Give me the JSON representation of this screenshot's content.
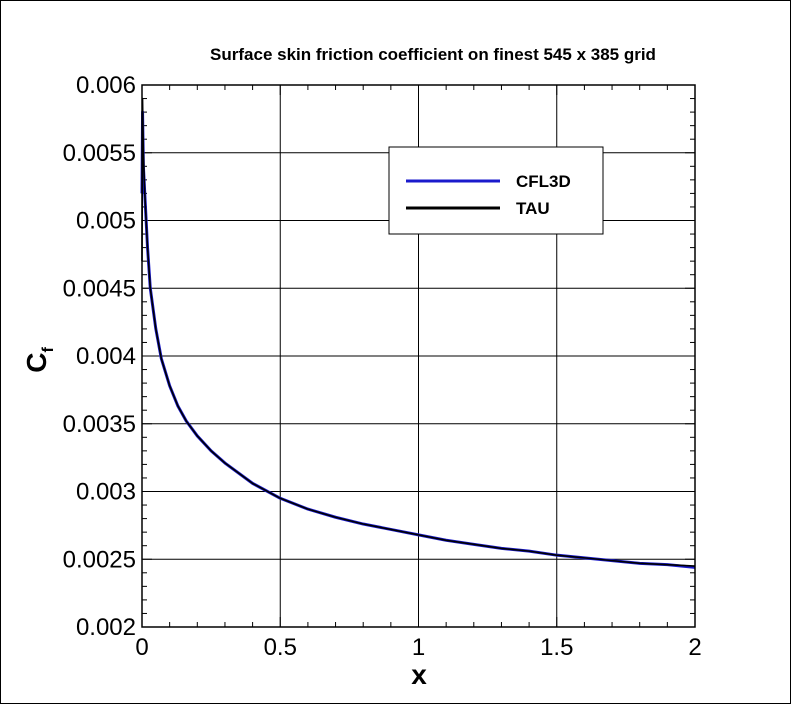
{
  "chart_data": {
    "type": "line",
    "title": "Surface skin friction coefficient on finest 545 x 385 grid",
    "xlabel": "x",
    "ylabel_main": "C",
    "ylabel_sub": "f",
    "xlim": [
      0,
      2
    ],
    "ylim": [
      0.002,
      0.006
    ],
    "grid": true,
    "legend_placement": "upper-middle-right",
    "x_ticks": [
      {
        "value": 0,
        "label": "0"
      },
      {
        "value": 0.5,
        "label": "0.5"
      },
      {
        "value": 1,
        "label": "1"
      },
      {
        "value": 1.5,
        "label": "1.5"
      },
      {
        "value": 2,
        "label": "2"
      }
    ],
    "y_ticks": [
      {
        "value": 0.002,
        "label": "0.002"
      },
      {
        "value": 0.0025,
        "label": "0.0025"
      },
      {
        "value": 0.003,
        "label": "0.003"
      },
      {
        "value": 0.0035,
        "label": "0.0035"
      },
      {
        "value": 0.004,
        "label": "0.004"
      },
      {
        "value": 0.0045,
        "label": "0.0045"
      },
      {
        "value": 0.005,
        "label": "0.005"
      },
      {
        "value": 0.0055,
        "label": "0.0055"
      },
      {
        "value": 0.006,
        "label": "0.006"
      }
    ],
    "series": [
      {
        "name": "CFL3D",
        "color": "#1a1acc",
        "x": [
          0.0,
          0.002,
          0.005,
          0.01,
          0.02,
          0.03,
          0.05,
          0.07,
          0.1,
          0.13,
          0.16,
          0.2,
          0.25,
          0.3,
          0.4,
          0.5,
          0.6,
          0.7,
          0.8,
          0.9,
          1.0,
          1.1,
          1.2,
          1.3,
          1.4,
          1.5,
          1.6,
          1.7,
          1.8,
          1.9,
          2.0
        ],
        "y": [
          0.0052,
          0.0058,
          0.0054,
          0.0052,
          0.0048,
          0.0045,
          0.0042,
          0.00398,
          0.00378,
          0.00363,
          0.00352,
          0.00341,
          0.0033,
          0.00321,
          0.00306,
          0.00295,
          0.00287,
          0.00281,
          0.00276,
          0.00272,
          0.00268,
          0.00264,
          0.00261,
          0.00258,
          0.00256,
          0.00253,
          0.00251,
          0.00249,
          0.00247,
          0.00246,
          0.00244
        ]
      },
      {
        "name": "TAU",
        "color": "#000000",
        "x": [
          0.0,
          0.002,
          0.005,
          0.01,
          0.02,
          0.03,
          0.05,
          0.07,
          0.1,
          0.13,
          0.16,
          0.2,
          0.25,
          0.3,
          0.4,
          0.5,
          0.6,
          0.7,
          0.8,
          0.9,
          1.0,
          1.1,
          1.2,
          1.3,
          1.4,
          1.5,
          1.6,
          1.7,
          1.8,
          1.9,
          2.0
        ],
        "y": [
          0.0047,
          0.0059,
          0.0055,
          0.0052,
          0.0048,
          0.0045,
          0.0042,
          0.00398,
          0.00378,
          0.00363,
          0.00352,
          0.00341,
          0.0033,
          0.00321,
          0.00306,
          0.00295,
          0.00287,
          0.00281,
          0.00276,
          0.00272,
          0.00268,
          0.00264,
          0.00261,
          0.00258,
          0.00256,
          0.00253,
          0.00251,
          0.00249,
          0.00247,
          0.00246,
          0.00245
        ]
      }
    ]
  }
}
